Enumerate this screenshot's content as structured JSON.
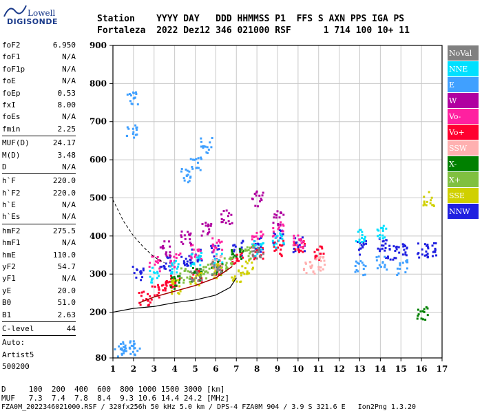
{
  "logo": {
    "brand": "Lowell",
    "product": "DIGISONDE"
  },
  "header": {
    "row1": "Station    YYYY DAY   DDD HHMMSS P1  FFS S AXN PPS IGA PS",
    "row2": "Fortaleza  2022 Dez12 346 021000 RSF      1 714 100 10+ 11"
  },
  "params": [
    {
      "name": "foF2",
      "value": "6.950"
    },
    {
      "name": "foF1",
      "value": "N/A"
    },
    {
      "name": "foF1p",
      "value": "N/A"
    },
    {
      "name": "foE",
      "value": "N/A"
    },
    {
      "name": "foEp",
      "value": "0.53"
    },
    {
      "name": "fxI",
      "value": "8.00"
    },
    {
      "name": "foEs",
      "value": "N/A"
    },
    {
      "name": "fmin",
      "value": "2.25"
    },
    {
      "name": "MUF(D)",
      "value": "24.17"
    },
    {
      "name": "M(D)",
      "value": "3.48"
    },
    {
      "name": "D",
      "value": "N/A"
    },
    {
      "name": "h`F",
      "value": "220.0"
    },
    {
      "name": "h`F2",
      "value": "220.0"
    },
    {
      "name": "h`E",
      "value": "N/A"
    },
    {
      "name": "h`Es",
      "value": "N/A"
    },
    {
      "name": "hmF2",
      "value": "275.5"
    },
    {
      "name": "hmF1",
      "value": "N/A"
    },
    {
      "name": "hmE",
      "value": "110.0"
    },
    {
      "name": "yF2",
      "value": "54.7"
    },
    {
      "name": "yF1",
      "value": "N/A"
    },
    {
      "name": "yE",
      "value": "20.0"
    },
    {
      "name": "B0",
      "value": "51.0"
    },
    {
      "name": "B1",
      "value": "2.63"
    },
    {
      "name": "C-level",
      "value": "44"
    }
  ],
  "auto": {
    "l1": "Auto:",
    "l2": "Artist5",
    "l3": "500200"
  },
  "footer": {
    "d_row": "D     100  200  400  600  800 1000 1500 3000 [km]",
    "muf_row": "MUF   7.3  7.4  7.8  8.4  9.3 10.6 14.4 24.2 [MHz]",
    "file_row": "FZA0M_2022346021000.RSF / 320fx256h 50 kHz 5.0 km / DPS-4 FZA0M 904 / 3.9 S 321.6 E   Ion2Png 1.3.20"
  },
  "legend": [
    {
      "label": "NoVal",
      "color": "#808080"
    },
    {
      "label": "NNE",
      "color": "#00e0ff"
    },
    {
      "label": "E",
      "color": "#40a0ff"
    },
    {
      "label": "W",
      "color": "#b000a0"
    },
    {
      "label": "Vo-",
      "color": "#ff20a0"
    },
    {
      "label": "Vo+",
      "color": "#ff0030"
    },
    {
      "label": "SSW",
      "color": "#ffb0b0"
    },
    {
      "label": "X-",
      "color": "#008000"
    },
    {
      "label": "X+",
      "color": "#80c040"
    },
    {
      "label": "SSE",
      "color": "#d0d000"
    },
    {
      "label": "NNW",
      "color": "#2020e0"
    }
  ],
  "chart_data": {
    "type": "scatter",
    "xlim": [
      1,
      17
    ],
    "ylim": [
      80,
      900
    ],
    "xticks": [
      1,
      2,
      3,
      4,
      5,
      6,
      7,
      8,
      9,
      10,
      11,
      12,
      13,
      14,
      15,
      16,
      17
    ],
    "yticks": [
      80,
      200,
      300,
      400,
      500,
      600,
      700,
      800,
      900
    ],
    "grid": true,
    "series": [
      {
        "name": "NNW",
        "color": "#2020e0",
        "points": [
          [
            2.2,
            305
          ],
          [
            3.5,
            330
          ],
          [
            4.5,
            335
          ],
          [
            5,
            350
          ],
          [
            6,
            360
          ],
          [
            7,
            370
          ],
          [
            8,
            380
          ],
          [
            9,
            400
          ],
          [
            10,
            380
          ],
          [
            13,
            370
          ],
          [
            14,
            380
          ],
          [
            14.5,
            360
          ],
          [
            15,
            370
          ],
          [
            16,
            365
          ],
          [
            16.5,
            365
          ]
        ]
      },
      {
        "name": "Vo+",
        "color": "#ff0030",
        "points": [
          [
            2.5,
            240
          ],
          [
            3,
            255
          ],
          [
            3.5,
            270
          ],
          [
            4,
            285
          ],
          [
            5,
            300
          ],
          [
            6,
            320
          ],
          [
            7,
            340
          ],
          [
            8,
            360
          ],
          [
            9,
            370
          ],
          [
            10,
            380
          ],
          [
            11,
            360
          ]
        ]
      },
      {
        "name": "Vo-",
        "color": "#ff20a0",
        "points": [
          [
            3,
            330
          ],
          [
            4,
            340
          ],
          [
            5,
            360
          ],
          [
            6,
            380
          ],
          [
            8,
            400
          ],
          [
            9,
            420
          ],
          [
            10,
            390
          ]
        ]
      },
      {
        "name": "W",
        "color": "#b000a0",
        "points": [
          [
            3.5,
            370
          ],
          [
            4.5,
            400
          ],
          [
            5.5,
            420
          ],
          [
            6.5,
            450
          ],
          [
            8,
            500
          ],
          [
            9,
            450
          ]
        ]
      },
      {
        "name": "E",
        "color": "#40a0ff",
        "points": [
          [
            1.2,
            105
          ],
          [
            1.6,
            108
          ],
          [
            2,
            110
          ],
          [
            1.9,
            760
          ],
          [
            1.9,
            680
          ],
          [
            4.5,
            560
          ],
          [
            5,
            590
          ],
          [
            5.5,
            640
          ],
          [
            13,
            320
          ],
          [
            14,
            330
          ],
          [
            15,
            320
          ]
        ]
      },
      {
        "name": "NNE",
        "color": "#00e0ff",
        "points": [
          [
            3,
            300
          ],
          [
            4,
            320
          ],
          [
            5,
            340
          ],
          [
            6,
            340
          ],
          [
            8,
            370
          ],
          [
            9,
            390
          ],
          [
            13,
            400
          ],
          [
            14,
            410
          ]
        ]
      },
      {
        "name": "X-",
        "color": "#008000",
        "points": [
          [
            4,
            280
          ],
          [
            5,
            300
          ],
          [
            6,
            320
          ],
          [
            7,
            350
          ],
          [
            16,
            200
          ]
        ]
      },
      {
        "name": "X+",
        "color": "#80c040",
        "points": [
          [
            4.5,
            300
          ],
          [
            5.5,
            310
          ],
          [
            6.5,
            330
          ],
          [
            7.5,
            360
          ]
        ]
      },
      {
        "name": "SSE",
        "color": "#d0d000",
        "points": [
          [
            4,
            270
          ],
          [
            5,
            290
          ],
          [
            6,
            310
          ],
          [
            7,
            300
          ],
          [
            7.5,
            320
          ],
          [
            16.3,
            500
          ]
        ]
      },
      {
        "name": "SSW",
        "color": "#ffb0b0",
        "points": [
          [
            10.5,
            320
          ],
          [
            11,
            330
          ],
          [
            6,
            330
          ]
        ]
      },
      {
        "name": "NoVal",
        "color": "#808080",
        "points": [
          [
            5,
            300
          ],
          [
            6,
            320
          ],
          [
            8,
            360
          ]
        ]
      }
    ]
  }
}
